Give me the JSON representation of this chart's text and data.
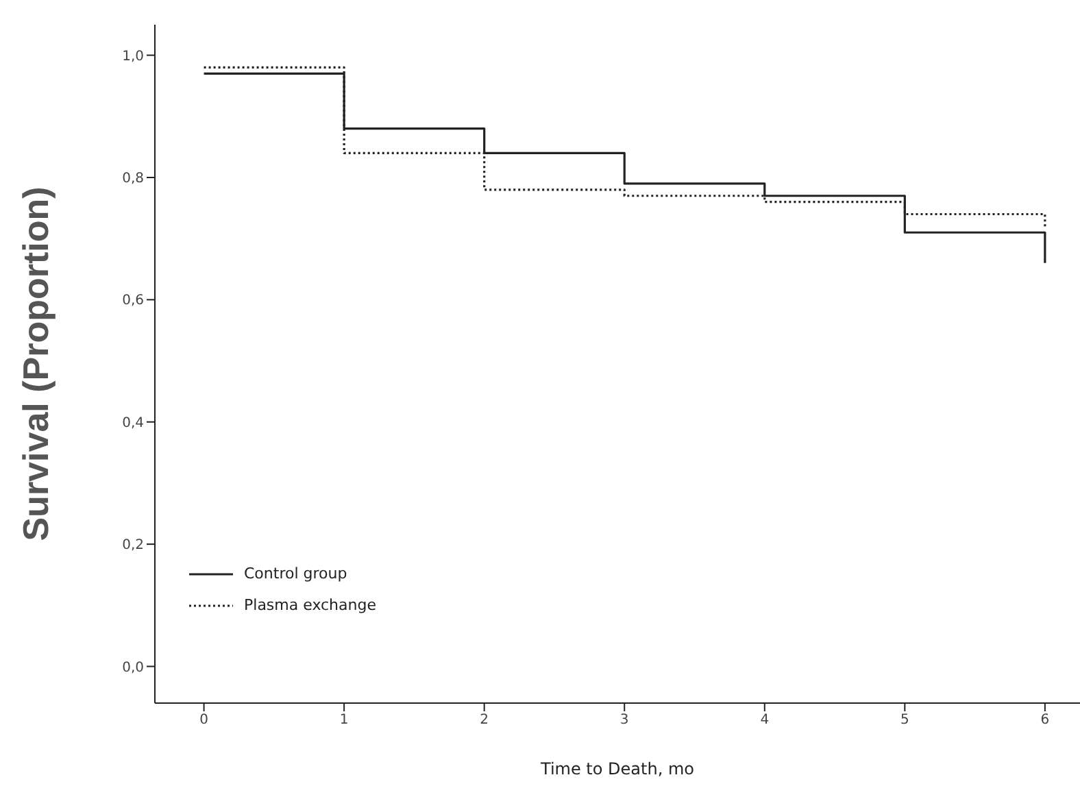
{
  "chart_data": {
    "type": "step",
    "xlabel": "Time to Death, mo",
    "ylabel": "Survival (Proportion)",
    "x": [
      0,
      1,
      2,
      3,
      4,
      5,
      6
    ],
    "series": [
      {
        "name": "Control group",
        "color": "#222222",
        "line_style": "solid",
        "values": [
          0.97,
          0.88,
          0.84,
          0.79,
          0.77,
          0.71,
          0.66
        ]
      },
      {
        "name": "Plasma exchange",
        "color": "#222222",
        "line_style": "dotted",
        "values": [
          0.98,
          0.84,
          0.78,
          0.77,
          0.76,
          0.74,
          0.72
        ]
      }
    ],
    "xlim": [
      -0.35,
      6.25
    ],
    "xticks": [
      0,
      1,
      2,
      3,
      4,
      5,
      6
    ],
    "ylim": [
      -0.06,
      1.05
    ],
    "yticks": [
      {
        "value": 0,
        "label": "0,0"
      },
      {
        "value": 0.2,
        "label": "0,2"
      },
      {
        "value": 0.4,
        "label": "0,4"
      },
      {
        "value": 0.6,
        "label": "0,6"
      },
      {
        "value": 0.8,
        "label": "0,8"
      },
      {
        "value": 1,
        "label": "1,0"
      }
    ],
    "grid": false,
    "legend": "bottom left",
    "marker": "none"
  }
}
